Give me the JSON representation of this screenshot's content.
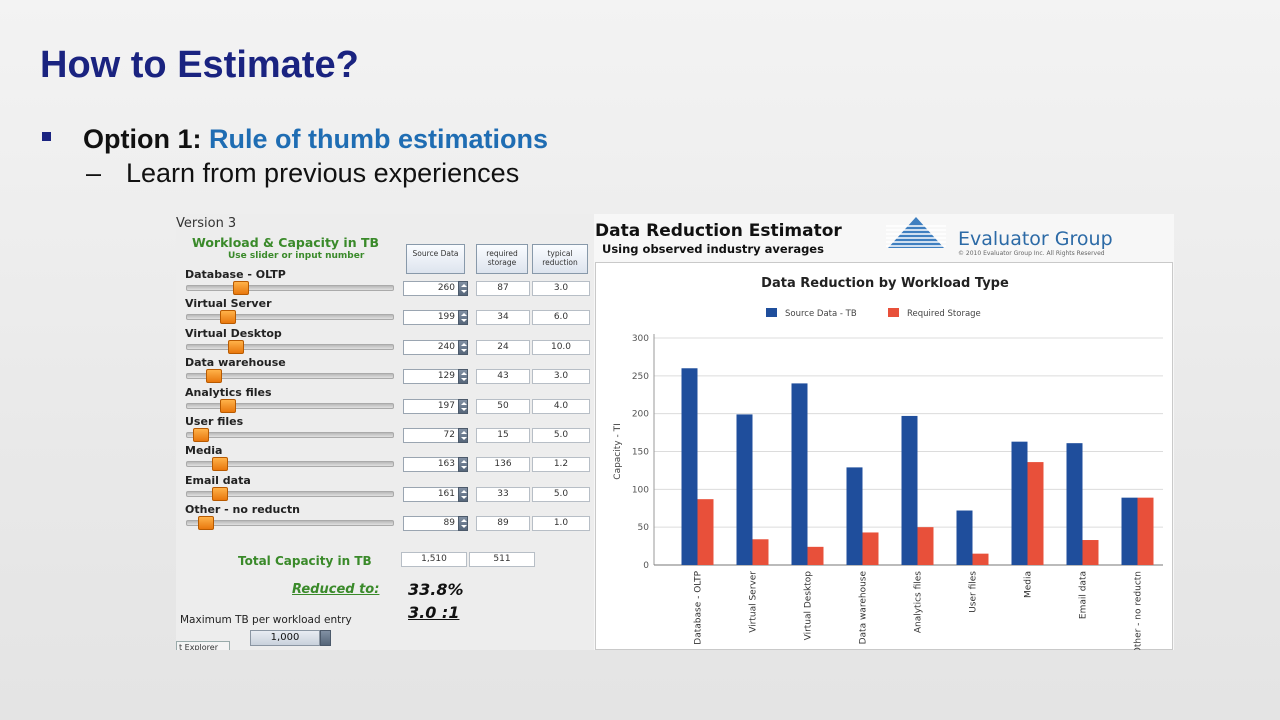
{
  "slide": {
    "title": "How to Estimate?",
    "bullet_option": "Option 1:",
    "bullet_rule": "Rule of thumb estimations",
    "sub_bullet": "Learn from previous experiences"
  },
  "estimator": {
    "version": "Version  3",
    "workload_title": "Workload & Capacity in TB",
    "workload_sub": "Use slider or input number",
    "col_source": "Source Data",
    "col_required": "required storage",
    "col_typical": "typical reduction",
    "rows": [
      {
        "label": "Database - OLTP",
        "source": "260",
        "required": "87",
        "reduction": "3.0",
        "slider": 0.26
      },
      {
        "label": "Virtual Server",
        "source": "199",
        "required": "34",
        "reduction": "6.0",
        "slider": 0.2
      },
      {
        "label": "Virtual Desktop",
        "source": "240",
        "required": "24",
        "reduction": "10.0",
        "slider": 0.24
      },
      {
        "label": "Data warehouse",
        "source": "129",
        "required": "43",
        "reduction": "3.0",
        "slider": 0.13
      },
      {
        "label": "Analytics files",
        "source": "197",
        "required": "50",
        "reduction": "4.0",
        "slider": 0.2
      },
      {
        "label": "User files",
        "source": "72",
        "required": "15",
        "reduction": "5.0",
        "slider": 0.07
      },
      {
        "label": "Media",
        "source": "163",
        "required": "136",
        "reduction": "1.2",
        "slider": 0.16
      },
      {
        "label": "Email data",
        "source": "161",
        "required": "33",
        "reduction": "5.0",
        "slider": 0.16
      },
      {
        "label": "Other - no reductn",
        "source": "89",
        "required": "89",
        "reduction": "1.0",
        "slider": 0.09
      }
    ],
    "total_label": "Total Capacity in TB",
    "total_source": "1,510",
    "total_required": "511",
    "reduced_label": "Reduced to:",
    "reduced_value": "33.8%",
    "ratio_value": "3.0 :1",
    "max_label": "Maximum TB per workload entry",
    "max_value": "1,000",
    "explorer_tab": "t Explorer",
    "right_title": "Data Reduction Estimator",
    "right_sub": "Using observed industry averages",
    "logo_name": "Evaluator Group",
    "logo_copy": "© 2010 Evaluator Group Inc.  All Rights Reserved"
  },
  "chart_data": {
    "type": "bar",
    "title": "Data Reduction by Workload Type",
    "ylabel": "Capacity - TI",
    "categories": [
      "Database - OLTP",
      "Virtual Server",
      "Virtual Desktop",
      "Data warehouse",
      "Analytics files",
      "User files",
      "Media",
      "Email data",
      "Other - no reductn"
    ],
    "series": [
      {
        "name": "Source Data - TB",
        "color": "#1f4e9c",
        "values": [
          260,
          199,
          240,
          129,
          197,
          72,
          163,
          161,
          89
        ]
      },
      {
        "name": "Required Storage",
        "color": "#e8503a",
        "values": [
          87,
          34,
          24,
          43,
          50,
          15,
          136,
          33,
          89
        ]
      }
    ],
    "ylim": [
      0,
      300
    ],
    "yticks": [
      0,
      50,
      100,
      150,
      200,
      250,
      300
    ],
    "grid": true,
    "legend": "top-center"
  }
}
